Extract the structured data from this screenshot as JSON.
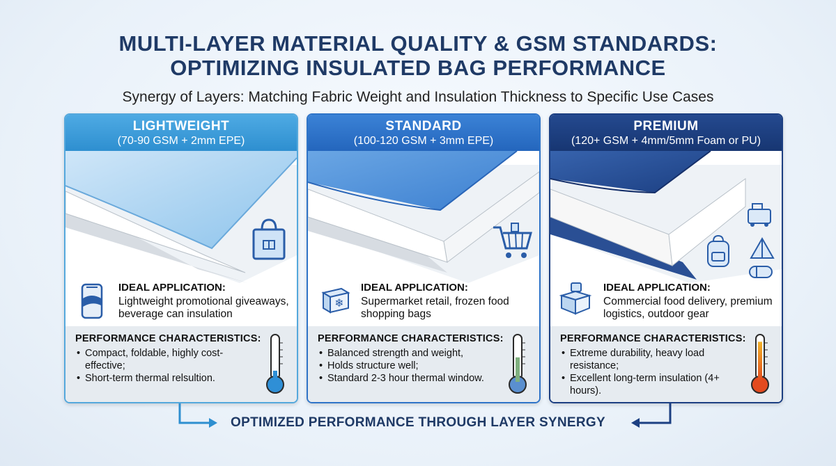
{
  "title": {
    "line1": "MULTI-LAYER MATERIAL QUALITY & GSM STANDARDS:",
    "line2": "OPTIMIZING INSULATED BAG PERFORMANCE"
  },
  "subtitle": "Synergy of Layers: Matching Fabric Weight and Insulation Thickness to Specific Use Cases",
  "colors": {
    "lightweight": "#2e8fd0",
    "standard": "#2466bd",
    "premium": "#173672",
    "title": "#1f3a66"
  },
  "cards": [
    {
      "name": "LIGHTWEIGHT",
      "spec": "(70-90 GSM + 2mm EPE)",
      "application_title": "IDEAL APPLICATION:",
      "application_text": "Lightweight promotional giveaways, beverage can insulation",
      "application_icon": "beverage-can-icon",
      "use_icons": [
        "tote-bag-icon"
      ],
      "performance_title": "PERFORMANCE CHARACTERISTICS:",
      "performance_items": [
        "Compact, foldable, highly cost-effective;",
        "Short-term thermal relsultion."
      ],
      "thermometer_level": 0.25
    },
    {
      "name": "STANDARD",
      "spec": "(100-120 GSM + 3mm EPE)",
      "application_title": "IDEAL APPLICATION:",
      "application_text": "Supermarket retail, frozen food shopping bags",
      "application_icon": "frozen-box-icon",
      "use_icons": [
        "shopping-cart-icon"
      ],
      "performance_title": "PERFORMANCE CHARACTERISTICS:",
      "performance_items": [
        "Balanced strength and weight,",
        "Holds structure well;",
        "Standard 2-3 hour thermal window."
      ],
      "thermometer_level": 0.55
    },
    {
      "name": "PREMIUM",
      "spec": "(120+ GSM + 4mm/5mm Foam or PU)",
      "application_title": "IDEAL APPLICATION:",
      "application_text": "Commercial food delivery, premium logistics, outdoor gear",
      "application_icon": "delivery-box-icon",
      "use_icons": [
        "cooler-icon",
        "backpack-icon",
        "tent-icon",
        "sleeping-bag-icon"
      ],
      "performance_title": "PERFORMANCE CHARACTERISTICS:",
      "performance_items": [
        "Extreme durability, heavy load resistance;",
        "Excellent long-term insulation (4+ hours)."
      ],
      "thermometer_level": 0.9
    }
  ],
  "footer": "OPTIMIZED PERFORMANCE THROUGH LAYER SYNERGY"
}
